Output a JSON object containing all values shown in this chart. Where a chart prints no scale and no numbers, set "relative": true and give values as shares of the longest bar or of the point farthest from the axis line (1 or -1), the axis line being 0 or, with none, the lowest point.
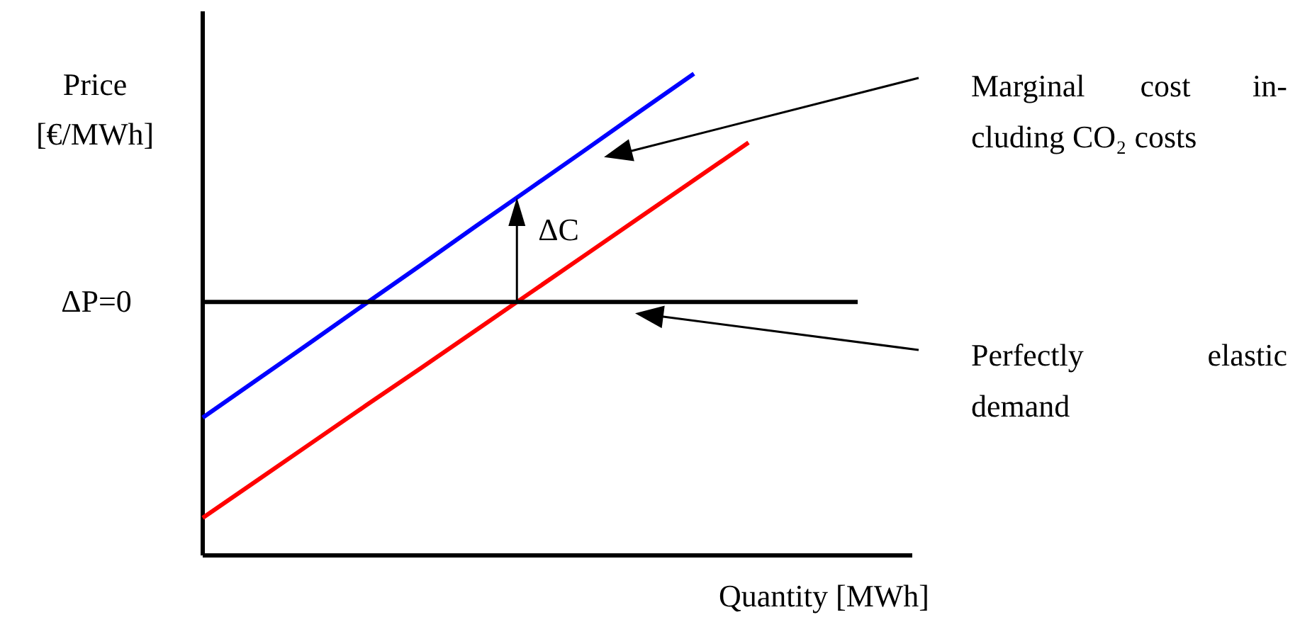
{
  "chart_data": {
    "type": "line",
    "relative": true,
    "xlabel": "Quantity [MWh]",
    "ylabel": "Price\n[€/MWh]",
    "categories": [
      null,
      null,
      null,
      null,
      null,
      null,
      null,
      null,
      null,
      null,
      null,
      null,
      null,
      null
    ],
    "series": [
      {
        "color": "#0000ff",
        "values": [
          0.286,
          0.365,
          0.444,
          0.524,
          0.603,
          0.683,
          0.762,
          0.841,
          0.921,
          1.0,
          null,
          null,
          null,
          null
        ]
      },
      {
        "color": "#ff0000",
        "values": [
          0.078,
          0.156,
          0.234,
          0.312,
          0.389,
          0.467,
          0.545,
          0.623,
          0.701,
          0.779,
          0.857,
          null,
          null,
          null
        ]
      },
      {
        "color": "#000000",
        "values": [
          0.526,
          0.526,
          0.526,
          0.526,
          0.526,
          0.526,
          0.526,
          0.526,
          0.526,
          0.526,
          0.526,
          0.526,
          0.526,
          null
        ]
      }
    ],
    "annotations": [
      "ΔP=0",
      "ΔC",
      "Marginal cost in-\ncluding CO₂ costs",
      "Perfectly elastic\ndemand"
    ]
  }
}
